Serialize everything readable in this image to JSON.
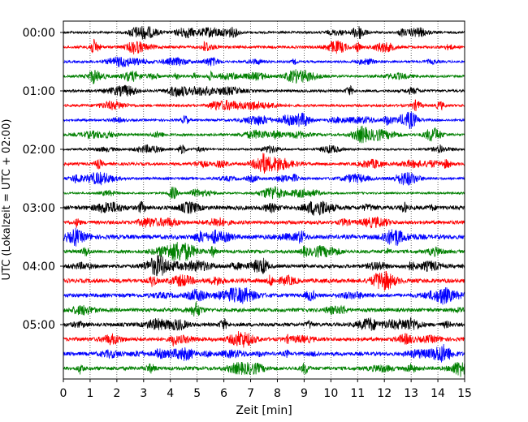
{
  "chart_data": {
    "type": "line",
    "title": "",
    "xlabel": "Zeit  [min]",
    "ylabel": "UTC (Lokalzeit = UTC + 02:00)",
    "xlim": [
      0,
      15
    ],
    "x_ticks": [
      0,
      1,
      2,
      3,
      4,
      5,
      6,
      7,
      8,
      9,
      10,
      11,
      12,
      13,
      14,
      15
    ],
    "y_tick_labels": [
      "00:00",
      "01:00",
      "02:00",
      "03:00",
      "04:00",
      "05:00"
    ],
    "trace_interval_min": 15,
    "trace_count": 24,
    "grid": {
      "x": true,
      "y": false,
      "style": "dotted"
    },
    "legend": "none",
    "trace_colors": [
      "#000000",
      "#ff0000",
      "#0000ff",
      "#008000"
    ]
  }
}
